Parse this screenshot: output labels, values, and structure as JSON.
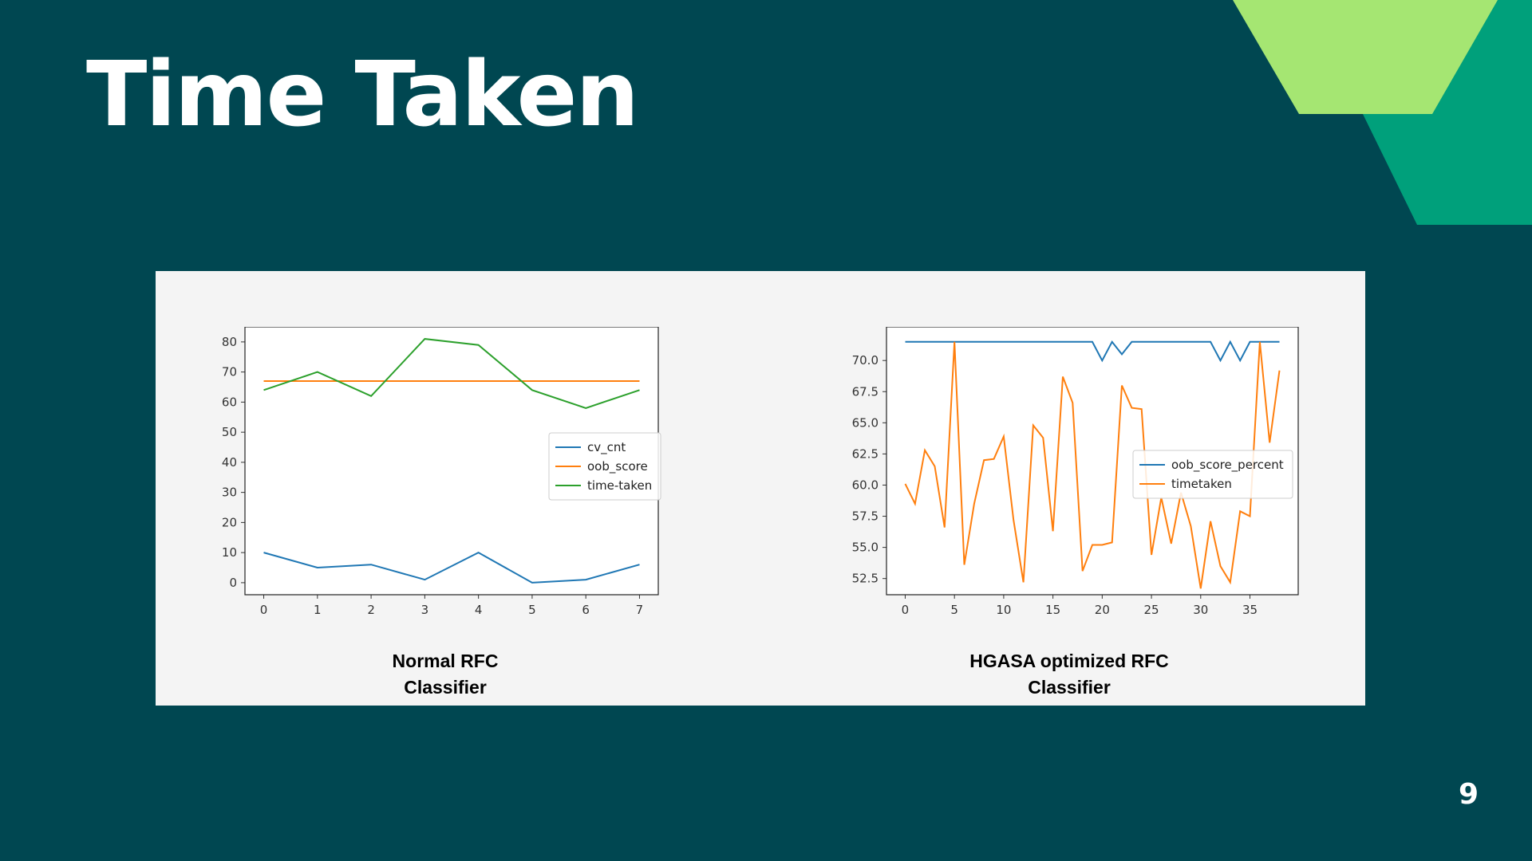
{
  "slide": {
    "title": "Time Taken",
    "page_number": "9"
  },
  "colors": {
    "background": "#004751",
    "panel": "#f4f4f4",
    "deco_light": "#a5e672",
    "deco_dark": "#00a07b"
  },
  "captions": {
    "left": "Normal RFC\nClassifier",
    "right": "HGASA optimized RFC\nClassifier"
  },
  "chart_data": [
    {
      "type": "line",
      "xlim": [
        -0.35,
        7.35
      ],
      "ylim": [
        -4,
        85
      ],
      "xticks": [
        0,
        1,
        2,
        3,
        4,
        5,
        6,
        7
      ],
      "yticks": [
        0,
        10,
        20,
        30,
        40,
        50,
        60,
        70,
        80
      ],
      "legend": "center-right",
      "grid": false,
      "series": [
        {
          "name": "cv_cnt",
          "color": "#1f77b4",
          "x": [
            0,
            1,
            2,
            3,
            4,
            5,
            6,
            7
          ],
          "values": [
            10,
            5,
            6,
            1,
            10,
            0,
            1,
            6
          ]
        },
        {
          "name": "oob_score",
          "color": "#ff7f0e",
          "x": [
            0,
            1,
            2,
            3,
            4,
            5,
            6,
            7
          ],
          "values": [
            67,
            67,
            67,
            67,
            67,
            67,
            67,
            67
          ]
        },
        {
          "name": "time-taken",
          "color": "#2ca02c",
          "x": [
            0,
            1,
            2,
            3,
            4,
            5,
            6,
            7
          ],
          "values": [
            64,
            70,
            62,
            81,
            79,
            64,
            58,
            64
          ]
        }
      ]
    },
    {
      "type": "line",
      "xlim": [
        -1.9,
        39.9
      ],
      "ylim": [
        51.2,
        72.7
      ],
      "xticks": [
        0,
        5,
        10,
        15,
        20,
        25,
        30,
        35
      ],
      "yticks": [
        52.5,
        55.0,
        57.5,
        60.0,
        62.5,
        65.0,
        67.5,
        70.0
      ],
      "ytick_labels": [
        "52.5",
        "55.0",
        "57.5",
        "60.0",
        "62.5",
        "65.0",
        "67.5",
        "70.0"
      ],
      "legend": "center-right",
      "grid": false,
      "series": [
        {
          "name": "oob_score_percent",
          "color": "#1f77b4",
          "x": [
            0,
            1,
            2,
            3,
            4,
            5,
            6,
            7,
            8,
            9,
            10,
            11,
            12,
            13,
            14,
            15,
            16,
            17,
            18,
            19,
            20,
            21,
            22,
            23,
            24,
            25,
            26,
            27,
            28,
            29,
            30,
            31,
            32,
            33,
            34,
            35,
            36,
            37,
            38
          ],
          "values": [
            71.5,
            71.5,
            71.5,
            71.5,
            71.5,
            71.5,
            71.5,
            71.5,
            71.5,
            71.5,
            71.5,
            71.5,
            71.5,
            71.5,
            71.5,
            71.5,
            71.5,
            71.5,
            71.5,
            71.5,
            70.0,
            71.5,
            70.5,
            71.5,
            71.5,
            71.5,
            71.5,
            71.5,
            71.5,
            71.5,
            71.5,
            71.5,
            70.0,
            71.5,
            70.0,
            71.5,
            71.5,
            71.5,
            71.5
          ]
        },
        {
          "name": "timetaken",
          "color": "#ff7f0e",
          "x": [
            0,
            1,
            2,
            3,
            4,
            5,
            6,
            7,
            8,
            9,
            10,
            11,
            12,
            13,
            14,
            15,
            16,
            17,
            18,
            19,
            20,
            21,
            22,
            23,
            24,
            25,
            26,
            27,
            28,
            29,
            30,
            31,
            32,
            33,
            34,
            35,
            36,
            37,
            38
          ],
          "values": [
            60.1,
            58.5,
            62.8,
            61.5,
            56.6,
            71.5,
            53.6,
            58.5,
            62.0,
            62.1,
            63.9,
            57.2,
            52.2,
            64.8,
            63.8,
            56.3,
            68.7,
            66.6,
            53.1,
            55.2,
            55.2,
            55.4,
            68.0,
            66.2,
            66.1,
            54.4,
            59.0,
            55.3,
            59.4,
            56.7,
            51.7,
            57.1,
            53.5,
            52.2,
            57.9,
            57.5,
            71.5,
            63.4,
            69.2
          ]
        }
      ]
    }
  ]
}
